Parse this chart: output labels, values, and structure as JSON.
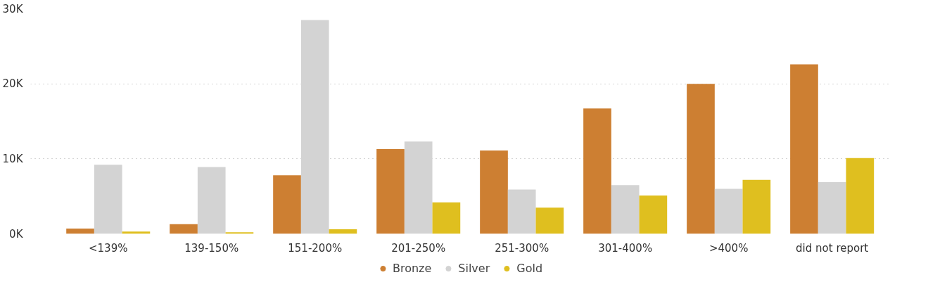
{
  "chart_data": {
    "type": "bar",
    "categories": [
      "<139%",
      "139-150%",
      "151-200%",
      "201-250%",
      "251-300%",
      "301-400%",
      ">400%",
      "did not report"
    ],
    "series": [
      {
        "name": "Bronze",
        "color": "#cd7f32",
        "values": [
          700,
          1300,
          7800,
          11300,
          11100,
          16700,
          20000,
          22600
        ]
      },
      {
        "name": "Silver",
        "color": "#d3d3d3",
        "values": [
          9200,
          8900,
          28500,
          12300,
          5900,
          6500,
          6000,
          6900
        ]
      },
      {
        "name": "Gold",
        "color": "#dfbf1f",
        "values": [
          300,
          200,
          600,
          4200,
          3500,
          5100,
          7200,
          10100
        ]
      }
    ],
    "ylim": [
      0,
      30000
    ],
    "yticks": [
      {
        "value": 0,
        "label": "0K"
      },
      {
        "value": 10000,
        "label": "10K"
      },
      {
        "value": 20000,
        "label": "20K"
      },
      {
        "value": 30000,
        "label": "30K"
      }
    ],
    "grid": "y",
    "legend": "bottom"
  }
}
